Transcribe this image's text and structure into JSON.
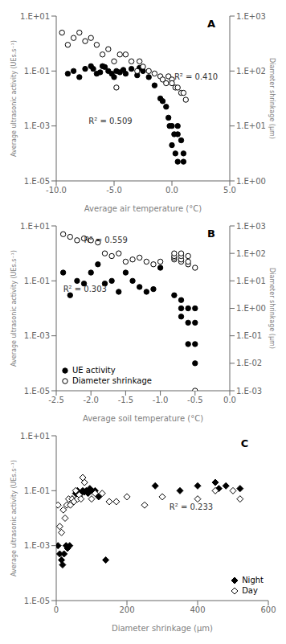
{
  "chart_data": [
    {
      "type": "scatter",
      "title": "A",
      "x_label": "Average air temperature (°C)",
      "y_label": "Average ultrasonic activity (UEs.s⁻¹)",
      "y2_label": "Diameter shrinkage (μm)",
      "log": "y",
      "grid": false,
      "xlim": [
        -10.0,
        5.0
      ],
      "xticks": [
        {
          "value": -10.0,
          "label": "-10.0"
        },
        {
          "value": -5.0,
          "label": "-5.0"
        },
        {
          "value": 0.0,
          "label": "0.0"
        },
        {
          "value": 5.0,
          "label": "5.0"
        }
      ],
      "ylim": [
        1e-05,
        10.0
      ],
      "yticks": [
        {
          "value": 1e-05,
          "label": "1.E-05"
        },
        {
          "value": 0.001,
          "label": "1.E-03"
        },
        {
          "value": 0.1,
          "label": "1.E-01"
        },
        {
          "value": 10.0,
          "label": "1.E+01"
        }
      ],
      "y2lim": [
        1.0,
        1000.0
      ],
      "y2ticks": [
        {
          "value": 1.0,
          "label": "1.E+00"
        },
        {
          "value": 10.0,
          "label": "1.E+01"
        },
        {
          "value": 100.0,
          "label": "1.E+02"
        },
        {
          "value": 1000.0,
          "label": "1.E+03"
        }
      ],
      "annotations": [
        {
          "text": "R² = 0.509",
          "x": -7.2,
          "y": 0.0015
        },
        {
          "text": "R² = 0.410",
          "x": 0.2,
          "y": 0.06
        }
      ],
      "series": [
        {
          "marker": "filled_circle",
          "color": "black",
          "x": [
            -9.0,
            -8.5,
            -8.0,
            -7.5,
            -7.0,
            -6.8,
            -6.5,
            -6.2,
            -6.0,
            -5.8,
            -5.5,
            -5.2,
            -5.0,
            -4.8,
            -4.5,
            -4.2,
            -4.0,
            -3.5,
            -3.0,
            -2.8,
            -2.5,
            -2.0,
            -1.5,
            -1.0,
            -0.8,
            -0.5,
            -0.3,
            0.0,
            0.0,
            0.2,
            0.3,
            0.5,
            0.5,
            0.5,
            1.0,
            1.0,
            0.8,
            -0.2
          ],
          "values": [
            0.08,
            0.1,
            0.06,
            0.12,
            0.15,
            0.12,
            0.08,
            0.09,
            0.15,
            0.14,
            0.1,
            0.08,
            0.06,
            0.1,
            0.09,
            0.11,
            0.08,
            0.12,
            0.07,
            0.13,
            0.1,
            0.06,
            0.03,
            0.01,
            0.008,
            0.005,
            0.002,
            0.001,
            0.0002,
            0.0005,
            0.0001,
            5e-05,
            0.001,
            0.0005,
            0.0001,
            5e-05,
            0.0003,
            0.001
          ]
        },
        {
          "marker": "open_circle",
          "color": "black",
          "axis": "y2",
          "x": [
            -9.5,
            -9.0,
            -8.5,
            -8.0,
            -7.5,
            -7.0,
            -6.5,
            -6.0,
            -5.5,
            -5.0,
            -4.5,
            -4.0,
            -3.5,
            -3.0,
            -2.5,
            -2.0,
            -1.5,
            -1.0,
            -0.8,
            -0.5,
            -0.3,
            0.0,
            0.0,
            0.3,
            0.5,
            0.8,
            1.0,
            1.2,
            -4.8,
            -2.8
          ],
          "values": [
            500.0,
            300.0,
            400.0,
            500.0,
            350.0,
            400.0,
            300.0,
            200.0,
            250.0,
            150.0,
            200.0,
            200.0,
            150.0,
            100.0,
            120.0,
            100.0,
            90.0,
            80.0,
            70.0,
            60.0,
            80.0,
            70.0,
            60.0,
            50.0,
            50.0,
            40.0,
            40.0,
            30.0,
            50.0,
            150.0
          ]
        }
      ]
    },
    {
      "type": "scatter",
      "title": "B",
      "x_label": "Average soil temperature (°C)",
      "y_label": "Average ultrasonic activity (UEs.s⁻¹)",
      "y2_label": "Diameter shrinkage (μm)",
      "log": "y",
      "grid": false,
      "legend": "lower left",
      "xlim": [
        -2.5,
        0.0
      ],
      "xticks": [
        -2.5,
        {
          "value": -2.0,
          "label": "-2.0"
        },
        -1.5,
        {
          "value": -1.0,
          "label": "-1.0"
        },
        -0.5,
        {
          "value": 0.0,
          "label": "0.0"
        }
      ],
      "ylim": [
        1e-05,
        10.0
      ],
      "yticks": [
        {
          "value": 1e-05,
          "label": "1.E-05"
        },
        {
          "value": 0.001,
          "label": "1.E-03"
        },
        {
          "value": 0.1,
          "label": "1.E-01"
        },
        {
          "value": 10.0,
          "label": "1.E+01"
        }
      ],
      "y2lim": [
        0.001,
        1000.0
      ],
      "y2ticks": [
        {
          "value": 0.001,
          "label": "1.E-03"
        },
        {
          "value": 0.01,
          "label": "1.E-02"
        },
        {
          "value": 0.1,
          "label": "1.E-01"
        },
        {
          "value": 1.0,
          "label": "1.E+00"
        },
        {
          "value": 10.0,
          "label": "1.E+01"
        },
        {
          "value": 100.0,
          "label": "1.E+02"
        },
        {
          "value": 1000.0,
          "label": "1.E+03"
        }
      ],
      "annotations": [
        {
          "text": "R² = 0.303",
          "x": -2.4,
          "y": 0.05
        },
        {
          "text": "R² = 0.559",
          "x": -2.1,
          "y": 3.0
        }
      ],
      "series": [
        {
          "name": "UE activity",
          "marker": "filled_circle",
          "color": "black",
          "x": [
            -2.4,
            -2.3,
            -2.2,
            -2.1,
            -2.0,
            -1.9,
            -1.8,
            -1.7,
            -1.6,
            -1.5,
            -1.4,
            -1.3,
            -1.2,
            -1.1,
            -1.0,
            -0.8,
            -0.7,
            -0.7,
            -0.7,
            -0.6,
            -0.6,
            -0.6,
            -0.5,
            -0.5,
            -0.5,
            -0.5
          ],
          "values": [
            0.2,
            0.03,
            0.1,
            0.08,
            0.2,
            0.4,
            0.08,
            0.1,
            0.04,
            0.2,
            0.1,
            0.06,
            0.04,
            0.05,
            0.3,
            0.03,
            0.02,
            0.01,
            0.005,
            0.01,
            0.003,
            0.0005,
            0.01,
            0.003,
            0.0005,
            0.0001
          ]
        },
        {
          "name": "Diameter shrinkage",
          "marker": "open_circle",
          "color": "black",
          "axis": "y2",
          "x": [
            -2.4,
            -2.3,
            -2.2,
            -2.1,
            -2.0,
            -1.9,
            -1.8,
            -1.7,
            -1.6,
            -1.5,
            -1.4,
            -1.3,
            -1.2,
            -1.1,
            -1.0,
            -0.8,
            -0.8,
            -0.8,
            -0.8,
            -0.7,
            -0.7,
            -0.7,
            -0.7,
            -0.6,
            -0.6,
            -0.6,
            -0.5,
            -0.5
          ],
          "values": [
            500.0,
            400.0,
            300.0,
            350.0,
            300.0,
            250.0,
            100.0,
            80.0,
            100.0,
            50.0,
            60.0,
            70.0,
            50.0,
            40.0,
            50.0,
            60.0,
            70.0,
            80.0,
            100.0,
            50.0,
            60.0,
            80.0,
            100.0,
            40.0,
            50.0,
            80.0,
            0.001,
            30.0
          ]
        }
      ]
    },
    {
      "type": "scatter",
      "title": "C",
      "x_label": "Diameter shrinkage (μm)",
      "y_label": "Average ultrasonic activity (UEs.s⁻¹)",
      "log": "y",
      "grid": false,
      "legend": "lower right",
      "xlim": [
        0,
        600
      ],
      "xticks": [
        0,
        200,
        400,
        600
      ],
      "ylim": [
        1e-05,
        10.0
      ],
      "yticks": [
        {
          "value": 1e-05,
          "label": "1.E-05"
        },
        {
          "value": 0.001,
          "label": "1.E-03"
        },
        {
          "value": 0.1,
          "label": "1.E-01"
        },
        {
          "value": 10.0,
          "label": "1.E+01"
        }
      ],
      "annotations": [
        {
          "text": "R² = 0.233",
          "x": 320,
          "y": 0.025
        }
      ],
      "series": [
        {
          "name": "Night",
          "marker": "filled_diamond",
          "color": "black",
          "x": [
            5,
            10,
            15,
            18,
            22,
            28,
            32,
            38,
            45,
            55,
            60,
            65,
            70,
            75,
            80,
            85,
            90,
            95,
            100,
            110,
            120,
            140,
            280,
            350,
            400,
            450,
            460,
            480,
            520
          ],
          "values": [
            0.001,
            0.0005,
            0.0003,
            0.0002,
            0.0005,
            0.001,
            0.0008,
            0.001,
            0.05,
            0.08,
            0.1,
            0.06,
            0.08,
            0.1,
            0.09,
            0.1,
            0.08,
            0.12,
            0.1,
            0.1,
            0.06,
            0.0003,
            0.15,
            0.1,
            0.15,
            0.2,
            0.12,
            0.15,
            0.12
          ]
        },
        {
          "name": "Day",
          "marker": "open_diamond",
          "color": "black",
          "x": [
            5,
            10,
            15,
            20,
            25,
            30,
            35,
            40,
            45,
            50,
            55,
            60,
            65,
            70,
            75,
            80,
            100,
            110,
            130,
            150,
            170,
            200,
            250,
            300,
            400,
            450,
            500,
            520
          ],
          "values": [
            0.03,
            0.005,
            0.003,
            0.02,
            0.01,
            0.03,
            0.05,
            0.03,
            0.05,
            0.04,
            0.1,
            0.05,
            0.07,
            0.05,
            0.3,
            0.2,
            0.05,
            0.08,
            0.08,
            0.04,
            0.04,
            0.06,
            0.03,
            0.06,
            0.05,
            0.1,
            0.1,
            0.05
          ]
        }
      ]
    }
  ]
}
